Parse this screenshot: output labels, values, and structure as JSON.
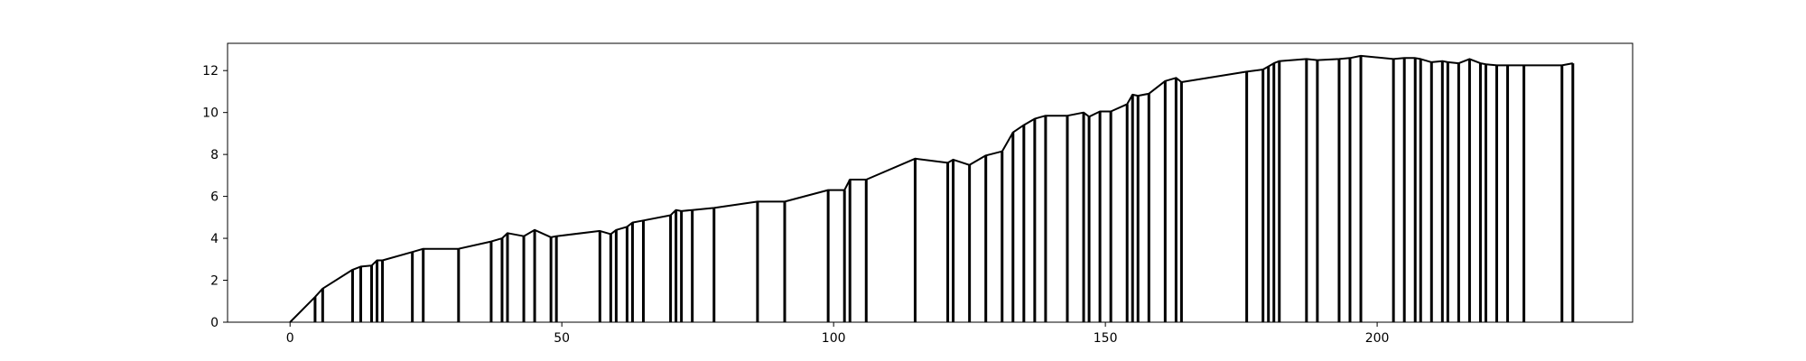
{
  "chart_data": {
    "type": "line",
    "title": "",
    "xlabel": "",
    "ylabel": "",
    "xlim": [
      -11.5,
      247
    ],
    "ylim": [
      0,
      13.3
    ],
    "grid": false,
    "legend": "none",
    "colors": {
      "line": "#000000",
      "axes": "#000000",
      "background": "#ffffff"
    },
    "xticks": [
      0,
      50,
      100,
      150,
      200
    ],
    "yticks": [
      0,
      2,
      4,
      6,
      8,
      10,
      12
    ],
    "series": [
      {
        "x": [
          0,
          4.6,
          6,
          11.5,
          13,
          15,
          16,
          17,
          22.5,
          24.5,
          31,
          37,
          39,
          40,
          43,
          45,
          48,
          49,
          57,
          59,
          60,
          62,
          63,
          65,
          70,
          71,
          72,
          74,
          78,
          86,
          91,
          99,
          102,
          103,
          106,
          115,
          121,
          122,
          125,
          128,
          131,
          133,
          135,
          137,
          139,
          143,
          146,
          147,
          149,
          151,
          154,
          155,
          156,
          158,
          161,
          163,
          164,
          176,
          179,
          180,
          181,
          182,
          187,
          189,
          193,
          195,
          197,
          203,
          205,
          207,
          208,
          210,
          212,
          213,
          215,
          217,
          219,
          220,
          222,
          224,
          227,
          234,
          236
        ],
        "y": [
          0,
          1.2,
          1.6,
          2.5,
          2.65,
          2.7,
          2.95,
          2.95,
          3.35,
          3.5,
          3.5,
          3.85,
          4.0,
          4.25,
          4.1,
          4.4,
          4.05,
          4.1,
          4.35,
          4.2,
          4.4,
          4.55,
          4.75,
          4.85,
          5.1,
          5.35,
          5.3,
          5.35,
          5.45,
          5.75,
          5.75,
          6.3,
          6.3,
          6.8,
          6.8,
          7.8,
          7.6,
          7.75,
          7.5,
          7.95,
          8.15,
          9.05,
          9.4,
          9.7,
          9.85,
          9.85,
          10.0,
          9.8,
          10.05,
          10.05,
          10.4,
          10.85,
          10.8,
          10.9,
          11.5,
          11.65,
          11.45,
          11.95,
          12.05,
          12.2,
          12.35,
          12.45,
          12.55,
          12.5,
          12.55,
          12.6,
          12.7,
          12.55,
          12.6,
          12.6,
          12.55,
          12.4,
          12.45,
          12.4,
          12.35,
          12.55,
          12.35,
          12.3,
          12.25,
          12.25,
          12.25,
          12.25,
          12.35
        ]
      }
    ]
  }
}
